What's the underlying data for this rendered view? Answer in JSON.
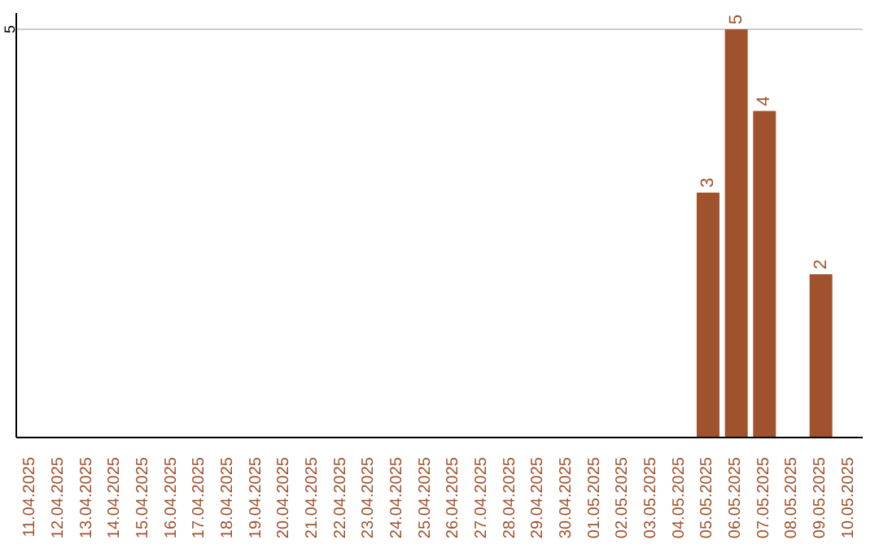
{
  "chart_data": {
    "type": "bar",
    "categories": [
      "11.04.2025",
      "12.04.2025",
      "13.04.2025",
      "14.04.2025",
      "15.04.2025",
      "16.04.2025",
      "17.04.2025",
      "18.04.2025",
      "19.04.2025",
      "20.04.2025",
      "21.04.2025",
      "22.04.2025",
      "23.04.2025",
      "24.04.2025",
      "25.04.2025",
      "26.04.2025",
      "27.04.2025",
      "28.04.2025",
      "29.04.2025",
      "30.04.2025",
      "01.05.2025",
      "02.05.2025",
      "03.05.2025",
      "04.05.2025",
      "05.05.2025",
      "06.05.2025",
      "07.05.2025",
      "08.05.2025",
      "09.05.2025",
      "10.05.2025"
    ],
    "values": [
      null,
      null,
      null,
      null,
      null,
      null,
      null,
      null,
      null,
      null,
      null,
      null,
      null,
      null,
      null,
      null,
      null,
      null,
      null,
      null,
      null,
      null,
      null,
      null,
      3,
      5,
      4,
      null,
      2,
      null
    ],
    "data_labels": true,
    "color": "#a0522d",
    "ylim": [
      0,
      5.2
    ],
    "yticks": [
      5
    ],
    "grid": "y"
  }
}
